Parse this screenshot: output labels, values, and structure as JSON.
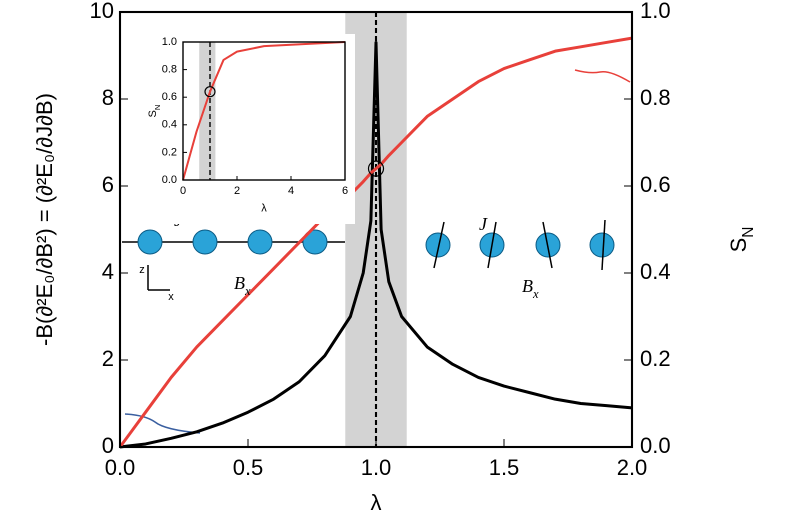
{
  "chart_data": [
    {
      "type": "line",
      "xlabel": "λ",
      "ylabel": "-B(∂²E₀/∂B²) = (∂²E₀/∂J∂B)",
      "y2label": [
        "S",
        "N"
      ],
      "x": [
        0,
        0.1,
        0.2,
        0.3,
        0.4,
        0.5,
        0.6,
        0.7,
        0.8,
        0.9,
        0.95,
        0.98,
        1.0,
        1.02,
        1.05,
        1.1,
        1.2,
        1.3,
        1.4,
        1.5,
        1.6,
        1.7,
        1.8,
        1.9,
        2.0
      ],
      "series": [
        {
          "color": "#000000",
          "values": [
            0,
            0.07,
            0.2,
            0.35,
            0.55,
            0.8,
            1.1,
            1.5,
            2.1,
            3.0,
            4.0,
            5.2,
            9.3,
            5.0,
            3.8,
            3.0,
            2.3,
            1.9,
            1.6,
            1.4,
            1.25,
            1.1,
            1.0,
            0.95,
            0.9
          ]
        },
        {
          "color": "#e8403a",
          "axis": "y2",
          "values": [
            0,
            0.08,
            0.16,
            0.23,
            0.29,
            0.35,
            0.41,
            0.47,
            0.53,
            0.58,
            0.61,
            0.63,
            0.64,
            0.65,
            0.67,
            0.7,
            0.76,
            0.8,
            0.84,
            0.87,
            0.89,
            0.91,
            0.92,
            0.93,
            0.94
          ]
        }
      ],
      "shade": [
        0.88,
        1.12
      ],
      "vline": 1.0,
      "marker": {
        "x": 1.0,
        "y2": 0.64
      },
      "xlim": [
        0,
        2
      ],
      "xticks": [
        {
          "value": 0,
          "label": "0.0"
        },
        {
          "value": 0.5,
          "label": "0.5"
        },
        {
          "value": 1,
          "label": "1.0"
        },
        {
          "value": 1.5,
          "label": "1.5"
        },
        {
          "value": 2,
          "label": "2.0"
        }
      ],
      "ylim": [
        0,
        10
      ],
      "yticks": [
        0,
        2,
        4,
        6,
        8,
        10
      ],
      "y2lim": [
        0,
        1
      ],
      "y2ticks": [
        {
          "value": 0,
          "label": "0.0"
        },
        {
          "value": 0.2,
          "label": "0.2"
        },
        {
          "value": 0.4,
          "label": "0.4"
        },
        {
          "value": 0.6,
          "label": "0.6"
        },
        {
          "value": 0.8,
          "label": "0.8"
        },
        {
          "value": 1,
          "label": "1.0"
        }
      ],
      "annotations": {
        "left_J": "J",
        "left_B": "B",
        "left_Bsub": "x",
        "right_J": "J",
        "right_B": "B",
        "right_Bsub": "x",
        "axis_z": "z",
        "axis_x": "x"
      }
    },
    {
      "type": "line",
      "xlabel": "λ",
      "ylabel": [
        "S",
        "N"
      ],
      "x": [
        0,
        0.5,
        1,
        1.5,
        2,
        3,
        4,
        5,
        6
      ],
      "series": [
        {
          "color": "#e8403a",
          "values": [
            0,
            0.35,
            0.64,
            0.87,
            0.93,
            0.97,
            0.98,
            0.99,
            1.0
          ]
        }
      ],
      "shade": [
        0.6,
        1.2
      ],
      "vline": 1.0,
      "marker": {
        "x": 1.0,
        "y": 0.64
      },
      "xlim": [
        0,
        6
      ],
      "xticks": [
        0,
        2,
        4,
        6
      ],
      "ylim": [
        0,
        1
      ],
      "yticks": [
        {
          "value": 0,
          "label": "0.0"
        },
        {
          "value": 0.2,
          "label": "0.2"
        },
        {
          "value": 0.4,
          "label": "0.4"
        },
        {
          "value": 0.6,
          "label": "0.6"
        },
        {
          "value": 0.8,
          "label": "0.8"
        },
        {
          "value": 1,
          "label": "1.0"
        }
      ]
    }
  ]
}
